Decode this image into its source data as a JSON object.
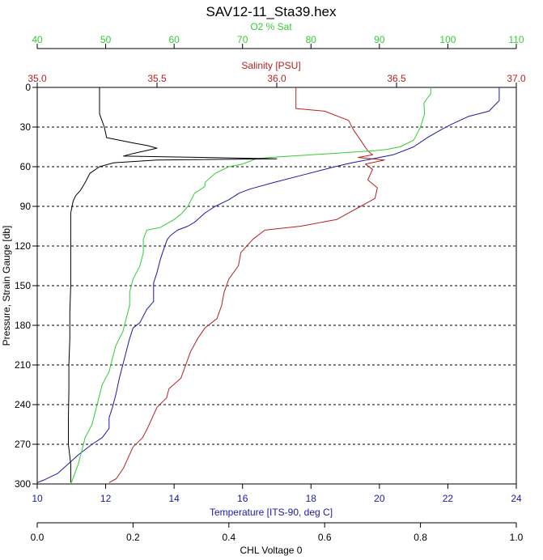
{
  "chart_data": {
    "type": "line",
    "title": "SAV12-11_Sta39.hex",
    "y_axis": {
      "label": "Pressure, Strain Gauge [db]",
      "range": [
        0,
        300
      ],
      "inverted": true,
      "ticks": [
        0,
        30,
        60,
        90,
        120,
        150,
        180,
        210,
        240,
        270,
        300
      ]
    },
    "x_axes": [
      {
        "id": "o2",
        "label": "O2 % Sat",
        "position": "top",
        "color": "#33cc33",
        "range": [
          40,
          110
        ],
        "ticks": [
          40,
          50,
          60,
          70,
          80,
          90,
          100,
          110
        ]
      },
      {
        "id": "sal",
        "label": "Salinity [PSU]",
        "position": "top",
        "color": "#b22222",
        "range": [
          35.0,
          37.0
        ],
        "ticks": [
          "35.0",
          "35.5",
          "36.0",
          "36.5",
          "37.0"
        ]
      },
      {
        "id": "temp",
        "label": "Temperature [ITS-90, deg C]",
        "position": "bottom",
        "color": "#1a1aa6",
        "range": [
          10,
          24
        ],
        "ticks": [
          10,
          12,
          14,
          16,
          18,
          20,
          22,
          24
        ]
      },
      {
        "id": "chl",
        "label": "CHL Voltage 0",
        "position": "bottom",
        "color": "#000000",
        "range": [
          0.0,
          1.0
        ],
        "ticks": [
          "0.0",
          "0.2",
          "0.4",
          "0.6",
          "0.8",
          "1.0"
        ]
      }
    ],
    "grid": {
      "horizontal_dashed": true
    },
    "series": [
      {
        "axis": "temp",
        "color": "#1a1aa6",
        "points": [
          [
            23.5,
            0
          ],
          [
            23.5,
            10
          ],
          [
            23.2,
            18
          ],
          [
            22.6,
            22
          ],
          [
            22.1,
            28
          ],
          [
            21.8,
            32
          ],
          [
            21.4,
            38
          ],
          [
            21.0,
            45
          ],
          [
            20.4,
            51
          ],
          [
            19.8,
            54
          ],
          [
            19.2,
            57
          ],
          [
            18.7,
            60
          ],
          [
            17.8,
            66
          ],
          [
            16.9,
            72
          ],
          [
            16.2,
            77
          ],
          [
            15.9,
            80
          ],
          [
            15.6,
            85
          ],
          [
            15.2,
            90
          ],
          [
            14.9,
            95
          ],
          [
            14.6,
            102
          ],
          [
            14.4,
            105
          ],
          [
            14.1,
            108
          ],
          [
            13.9,
            112
          ],
          [
            13.8,
            115
          ],
          [
            13.7,
            122
          ],
          [
            13.6,
            130
          ],
          [
            13.5,
            140
          ],
          [
            13.4,
            148
          ],
          [
            13.4,
            155
          ],
          [
            13.4,
            162
          ],
          [
            13.2,
            168
          ],
          [
            13.0,
            178
          ],
          [
            12.8,
            182
          ],
          [
            12.7,
            190
          ],
          [
            12.6,
            200
          ],
          [
            12.5,
            210
          ],
          [
            12.4,
            220
          ],
          [
            12.3,
            232
          ],
          [
            12.2,
            242
          ],
          [
            12.1,
            250
          ],
          [
            12.1,
            258
          ],
          [
            11.9,
            265
          ],
          [
            11.6,
            270
          ],
          [
            11.2,
            278
          ],
          [
            10.9,
            285
          ],
          [
            10.6,
            292
          ],
          [
            10.2,
            297
          ],
          [
            10.0,
            299
          ]
        ]
      },
      {
        "axis": "sal",
        "color": "#b22222",
        "points": [
          [
            36.08,
            0
          ],
          [
            36.08,
            16
          ],
          [
            36.2,
            18
          ],
          [
            36.3,
            25
          ],
          [
            36.32,
            32
          ],
          [
            36.35,
            40
          ],
          [
            36.38,
            48
          ],
          [
            36.4,
            51
          ],
          [
            36.34,
            53
          ],
          [
            36.45,
            55
          ],
          [
            36.37,
            58
          ],
          [
            36.4,
            62
          ],
          [
            36.38,
            70
          ],
          [
            36.42,
            76
          ],
          [
            36.41,
            84
          ],
          [
            36.35,
            90
          ],
          [
            36.3,
            95
          ],
          [
            36.25,
            100
          ],
          [
            36.1,
            105
          ],
          [
            35.95,
            108
          ],
          [
            35.9,
            115
          ],
          [
            35.85,
            125
          ],
          [
            35.84,
            135
          ],
          [
            35.8,
            145
          ],
          [
            35.78,
            155
          ],
          [
            35.77,
            165
          ],
          [
            35.75,
            175
          ],
          [
            35.7,
            182
          ],
          [
            35.67,
            190
          ],
          [
            35.64,
            200
          ],
          [
            35.62,
            210
          ],
          [
            35.6,
            220
          ],
          [
            35.55,
            228
          ],
          [
            35.54,
            235
          ],
          [
            35.5,
            242
          ],
          [
            35.48,
            250
          ],
          [
            35.46,
            258
          ],
          [
            35.44,
            265
          ],
          [
            35.4,
            272
          ],
          [
            35.38,
            280
          ],
          [
            35.36,
            288
          ],
          [
            35.33,
            296
          ],
          [
            35.3,
            299
          ]
        ]
      },
      {
        "axis": "o2",
        "color": "#33cc33",
        "points": [
          [
            97.5,
            0
          ],
          [
            97.5,
            5
          ],
          [
            97.0,
            8
          ],
          [
            96.5,
            12
          ],
          [
            96.6,
            20
          ],
          [
            96.0,
            30
          ],
          [
            95.5,
            35
          ],
          [
            95.0,
            40
          ],
          [
            93.0,
            45
          ],
          [
            91.0,
            47
          ],
          [
            89.0,
            48
          ],
          [
            86.0,
            49
          ],
          [
            83.0,
            50
          ],
          [
            80.0,
            51
          ],
          [
            77.0,
            52
          ],
          [
            74.0,
            53
          ],
          [
            72.0,
            54
          ],
          [
            71.0,
            56
          ],
          [
            70.0,
            58
          ],
          [
            68.0,
            60
          ],
          [
            66.0,
            65
          ],
          [
            64.5,
            72
          ],
          [
            64.5,
            75
          ],
          [
            63.0,
            80
          ],
          [
            62.0,
            90
          ],
          [
            61.0,
            96
          ],
          [
            60.0,
            100
          ],
          [
            58.0,
            106
          ],
          [
            56.0,
            108
          ],
          [
            55.5,
            115
          ],
          [
            55.5,
            125
          ],
          [
            55.0,
            135
          ],
          [
            54.0,
            145
          ],
          [
            53.5,
            155
          ],
          [
            53.5,
            165
          ],
          [
            53.0,
            175
          ],
          [
            52.5,
            185
          ],
          [
            51.5,
            195
          ],
          [
            51.0,
            205
          ],
          [
            50.5,
            215
          ],
          [
            49.5,
            225
          ],
          [
            49.0,
            235
          ],
          [
            48.5,
            245
          ],
          [
            48.0,
            255
          ],
          [
            47.0,
            265
          ],
          [
            46.5,
            275
          ],
          [
            46.0,
            285
          ],
          [
            45.5,
            292
          ],
          [
            45.0,
            299
          ]
        ]
      },
      {
        "axis": "chl",
        "color": "#000000",
        "points": [
          [
            0.13,
            0
          ],
          [
            0.13,
            10
          ],
          [
            0.13,
            20
          ],
          [
            0.14,
            30
          ],
          [
            0.145,
            38
          ],
          [
            0.2,
            42
          ],
          [
            0.23,
            44
          ],
          [
            0.25,
            46
          ],
          [
            0.2,
            50
          ],
          [
            0.18,
            52
          ],
          [
            0.5,
            54
          ],
          [
            0.25,
            55
          ],
          [
            0.16,
            57
          ],
          [
            0.13,
            60
          ],
          [
            0.11,
            65
          ],
          [
            0.1,
            72
          ],
          [
            0.09,
            78
          ],
          [
            0.08,
            82
          ],
          [
            0.075,
            86
          ],
          [
            0.07,
            95
          ],
          [
            0.07,
            110
          ],
          [
            0.07,
            130
          ],
          [
            0.07,
            150
          ],
          [
            0.068,
            170
          ],
          [
            0.068,
            190
          ],
          [
            0.066,
            210
          ],
          [
            0.066,
            230
          ],
          [
            0.065,
            250
          ],
          [
            0.065,
            270
          ],
          [
            0.07,
            285
          ],
          [
            0.07,
            299
          ]
        ]
      }
    ]
  }
}
